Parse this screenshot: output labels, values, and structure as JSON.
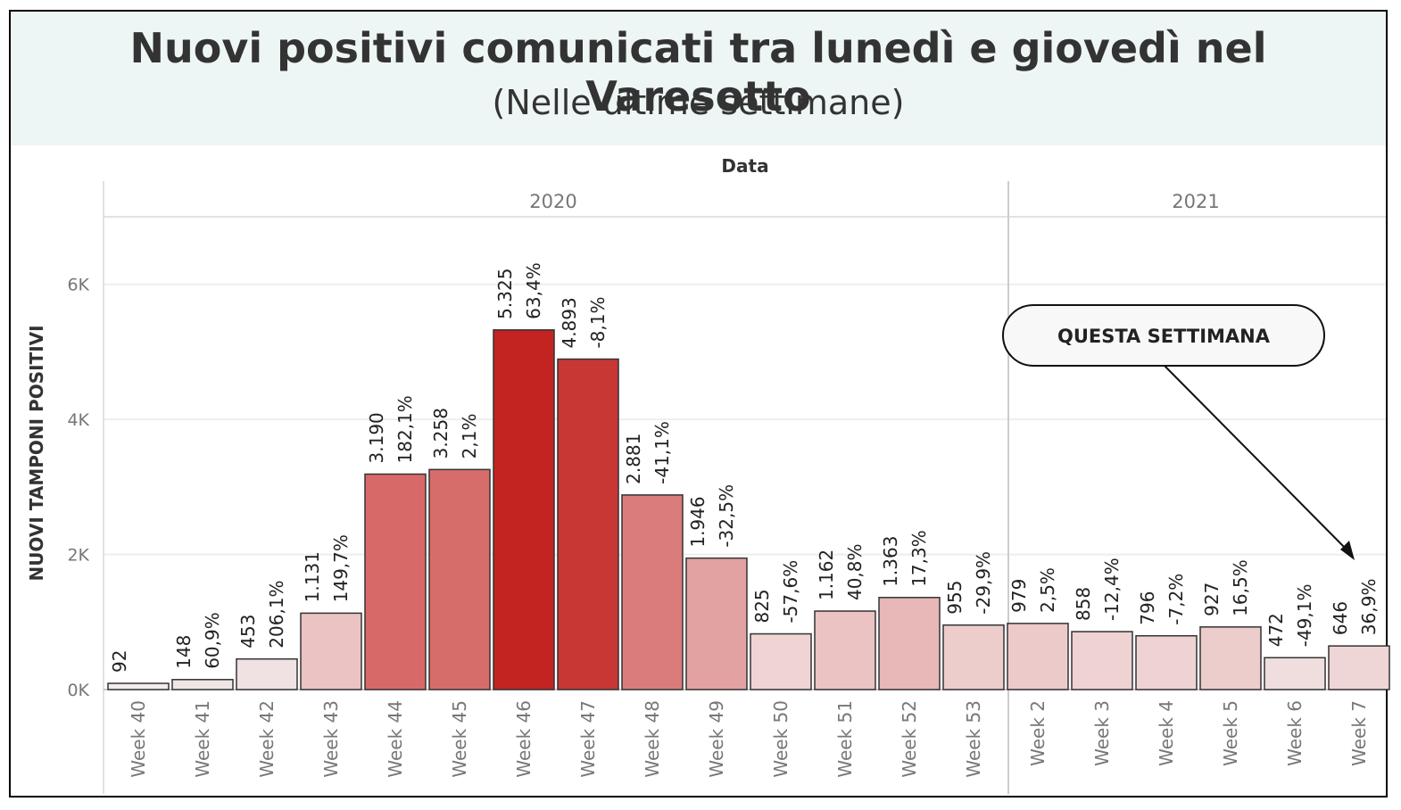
{
  "title": "Nuovi positivi comunicati tra lunedì e giovedì nel Varesotto",
  "subtitle": "(Nelle ultime settimane)",
  "chart_data": {
    "type": "bar",
    "xlabel": "Data",
    "ylabel": "NUOVI TAMPONI POSITIVI",
    "ylim": [
      0,
      7000
    ],
    "yticks": [
      {
        "value": 0,
        "label": "0K"
      },
      {
        "value": 2000,
        "label": "2K"
      },
      {
        "value": 4000,
        "label": "4K"
      },
      {
        "value": 6000,
        "label": "6K"
      }
    ],
    "years": [
      {
        "label": "2020",
        "count": 14
      },
      {
        "label": "2021",
        "count": 6
      }
    ],
    "bars": [
      {
        "category": "Week 40",
        "value": 92,
        "value_label": "92",
        "change": "",
        "color": "#f2ecec"
      },
      {
        "category": "Week 41",
        "value": 148,
        "value_label": "148",
        "change": "60,9%",
        "color": "#eee6e6"
      },
      {
        "category": "Week 42",
        "value": 453,
        "value_label": "453",
        "change": "206,1%",
        "color": "#f0e2e2"
      },
      {
        "category": "Week 43",
        "value": 1131,
        "value_label": "1.131",
        "change": "149,7%",
        "color": "#ebc3c3"
      },
      {
        "category": "Week 44",
        "value": 3190,
        "value_label": "3.190",
        "change": "182,1%",
        "color": "#d76a69"
      },
      {
        "category": "Week 45",
        "value": 3258,
        "value_label": "3.258",
        "change": "2,1%",
        "color": "#d76d6b"
      },
      {
        "category": "Week 46",
        "value": 5325,
        "value_label": "5.325",
        "change": "63,4%",
        "color": "#c42421"
      },
      {
        "category": "Week 47",
        "value": 4893,
        "value_label": "4.893",
        "change": "-8,1%",
        "color": "#c93735"
      },
      {
        "category": "Week 48",
        "value": 2881,
        "value_label": "2.881",
        "change": "-41,1%",
        "color": "#da7c7b"
      },
      {
        "category": "Week 49",
        "value": 1946,
        "value_label": "1.946",
        "change": "-32,5%",
        "color": "#e2a2a2"
      },
      {
        "category": "Week 50",
        "value": 825,
        "value_label": "825",
        "change": "-57,6%",
        "color": "#f0d4d4"
      },
      {
        "category": "Week 51",
        "value": 1162,
        "value_label": "1.162",
        "change": "40,8%",
        "color": "#ebc3c3"
      },
      {
        "category": "Week 52",
        "value": 1363,
        "value_label": "1.363",
        "change": "17,3%",
        "color": "#e8b7b7"
      },
      {
        "category": "Week 53",
        "value": 955,
        "value_label": "955",
        "change": "-29,9%",
        "color": "#edcccc"
      },
      {
        "category": "Week 2",
        "value": 979,
        "value_label": "979",
        "change": "2,5%",
        "color": "#edcaca"
      },
      {
        "category": "Week 3",
        "value": 858,
        "value_label": "858",
        "change": "-12,4%",
        "color": "#efd2d2"
      },
      {
        "category": "Week 4",
        "value": 796,
        "value_label": "796",
        "change": "-7,2%",
        "color": "#efd3d3"
      },
      {
        "category": "Week 5",
        "value": 927,
        "value_label": "927",
        "change": "16,5%",
        "color": "#edcccc"
      },
      {
        "category": "Week 6",
        "value": 472,
        "value_label": "472",
        "change": "-49,1%",
        "color": "#f0dede"
      },
      {
        "category": "Week 7",
        "value": 646,
        "value_label": "646",
        "change": "36,9%",
        "color": "#efd6d6"
      }
    ],
    "annotation": {
      "text": "QUESTA SETTIMANA",
      "target": "Week 7"
    },
    "colors": {
      "header_bg": "#eef6f5",
      "bar_stroke": "#333333",
      "grid": "#eeeeee"
    }
  }
}
